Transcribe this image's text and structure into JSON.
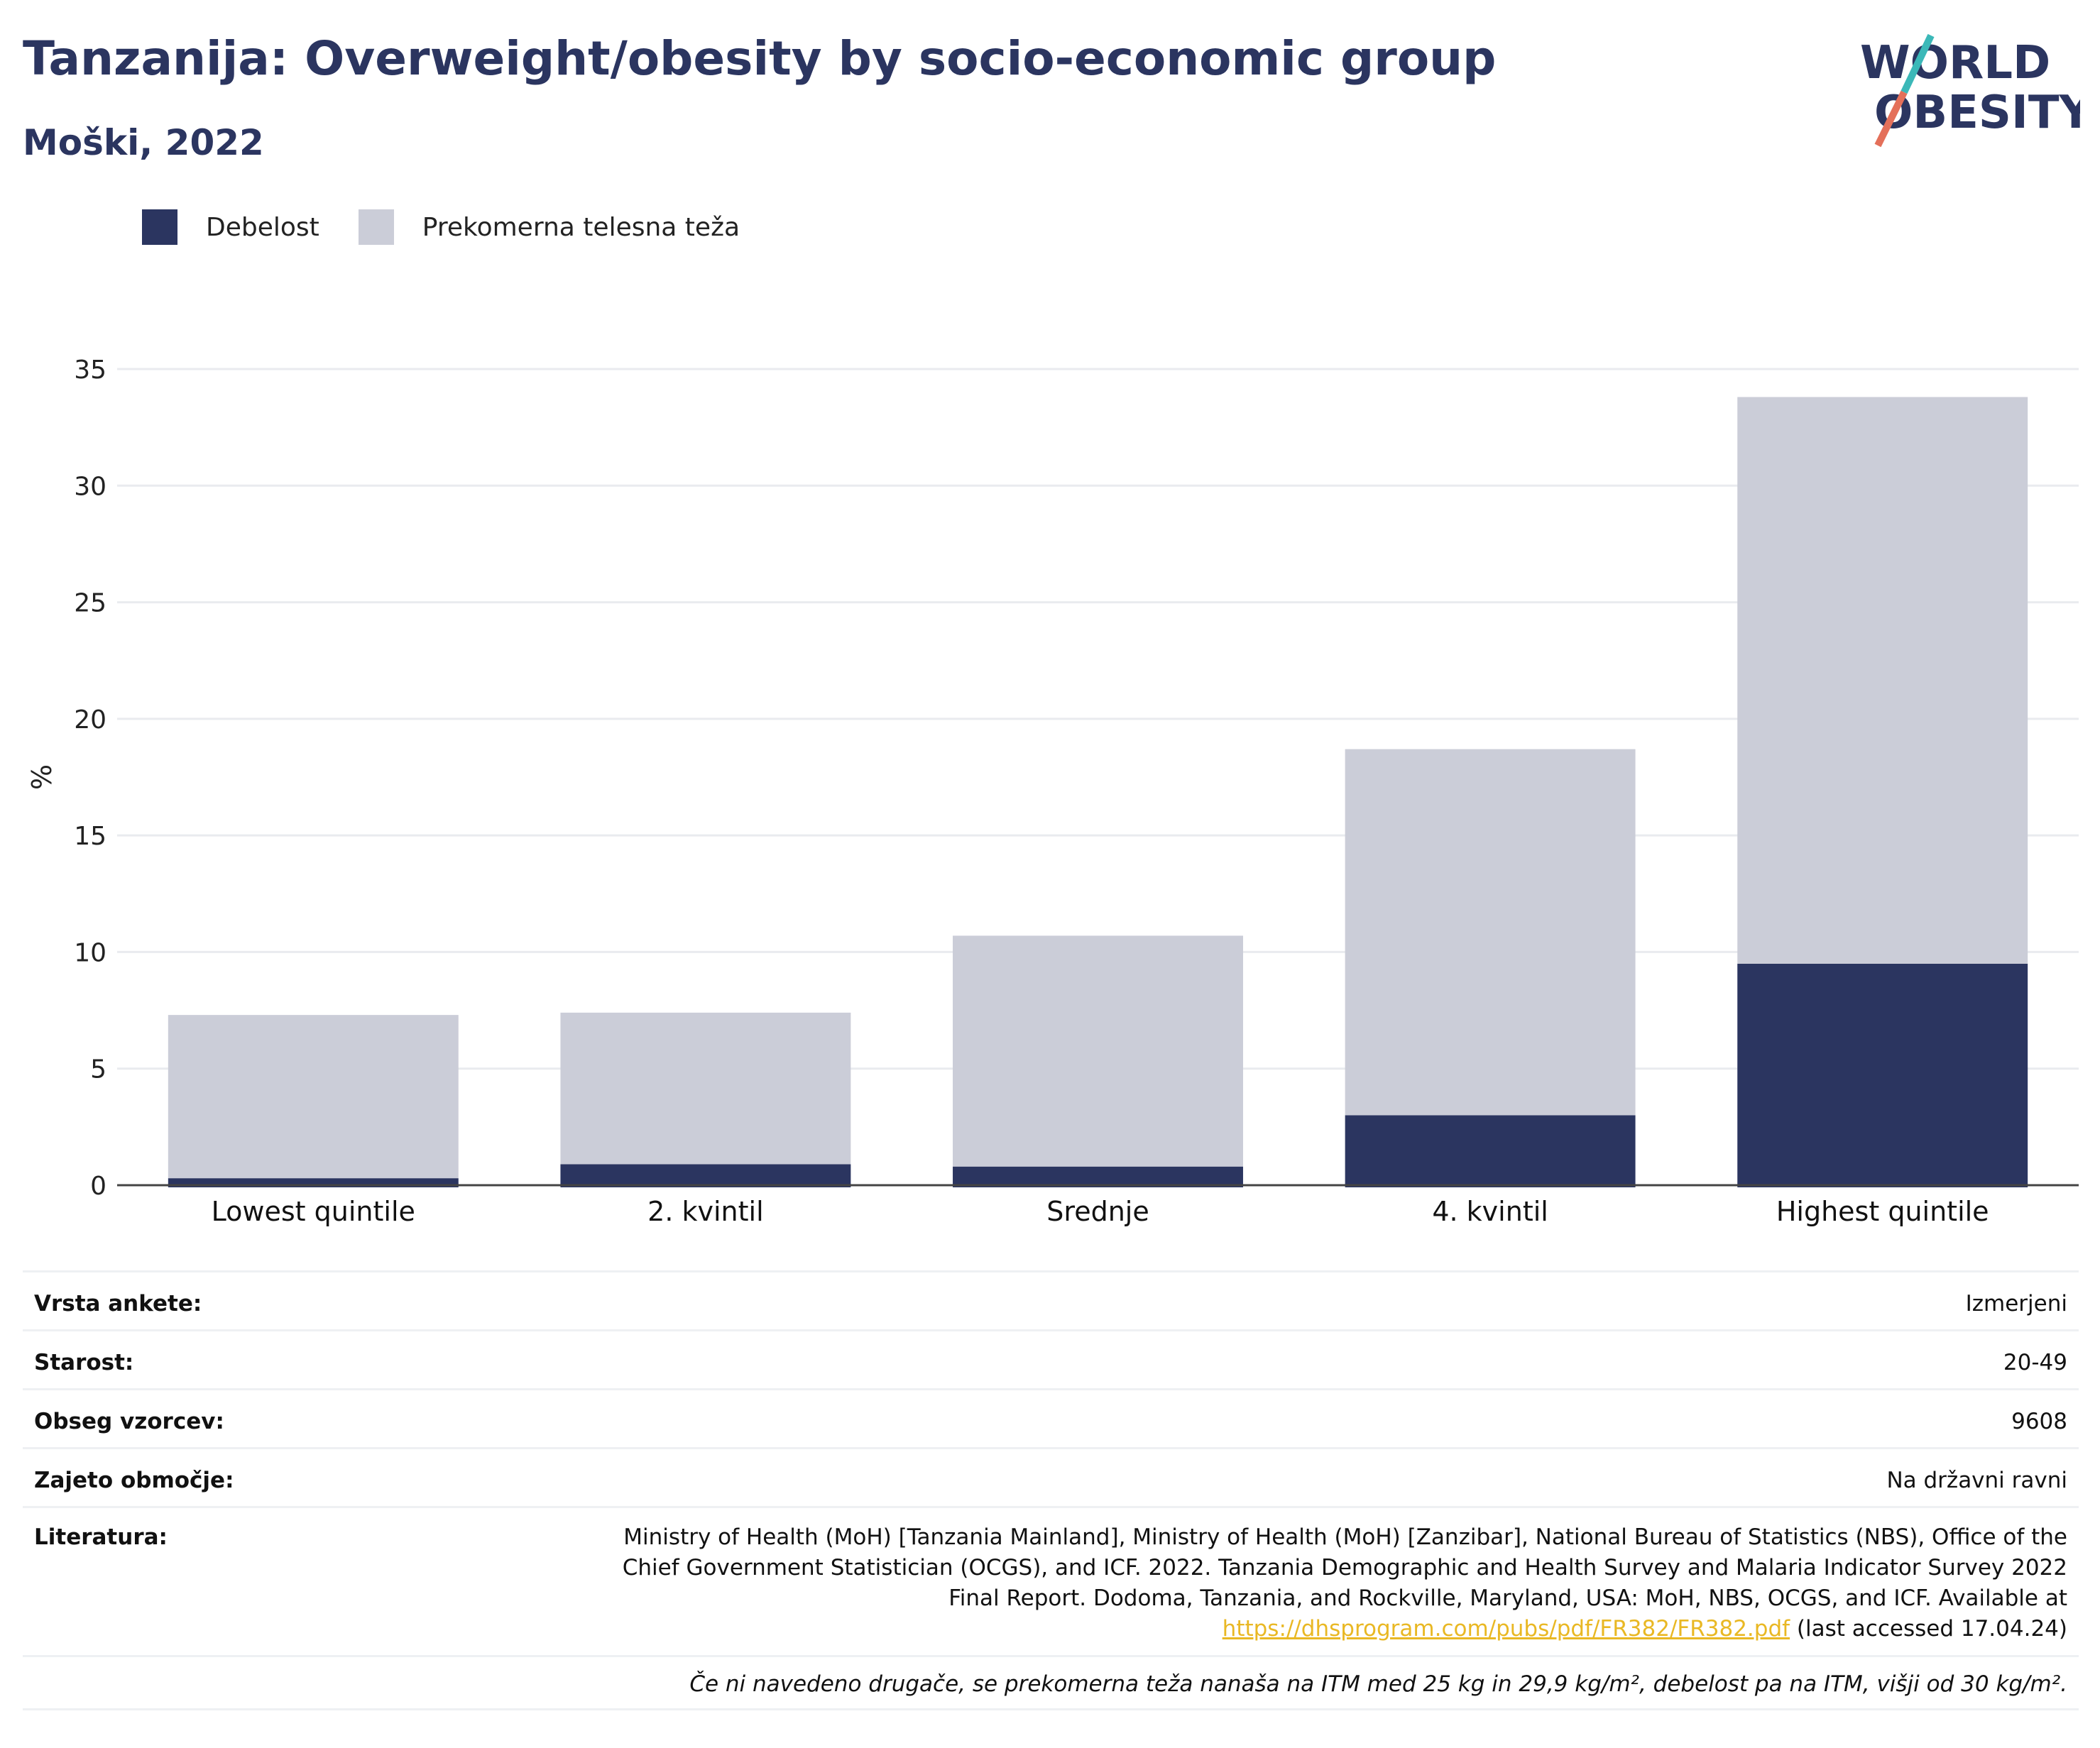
{
  "header": {
    "title": "Tanzanija: Overweight/obesity by socio-economic group",
    "subtitle": "Moški, 2022"
  },
  "logo": {
    "line1": "WORLD",
    "line2": "OBESITY",
    "colors": {
      "text": "#2b3560",
      "slash_top": "#3bb8b8",
      "slash_bottom": "#e4705a"
    }
  },
  "legend": {
    "items": [
      {
        "label": "Debelost",
        "color": "#2b3560"
      },
      {
        "label": "Prekomerna telesna teža",
        "color": "#cbcdd8"
      }
    ]
  },
  "chart_data": {
    "type": "bar",
    "stacked": true,
    "ylabel": "%",
    "ylim": [
      0,
      35
    ],
    "yticks": [
      0,
      5,
      10,
      15,
      20,
      25,
      30,
      35
    ],
    "grid": true,
    "legend_position": "top-left",
    "categories": [
      "Lowest quintile",
      "2. kvintil",
      "Srednje",
      "4. kvintil",
      "Highest quintile"
    ],
    "series": [
      {
        "name": "Debelost",
        "color": "#2b3560",
        "values": [
          0.3,
          0.9,
          0.8,
          3.0,
          9.5
        ]
      },
      {
        "name": "Prekomerna telesna teža",
        "color": "#cbcdd8",
        "values": [
          7.0,
          6.5,
          9.9,
          15.7,
          24.3
        ]
      }
    ]
  },
  "info": {
    "rows": [
      {
        "label": "Vrsta ankete:",
        "value": "Izmerjeni"
      },
      {
        "label": "Starost:",
        "value": "20-49"
      },
      {
        "label": "Obseg vzorcev:",
        "value": "9608"
      },
      {
        "label": "Zajeto območje:",
        "value": "Na državni ravni"
      }
    ],
    "literature": {
      "label": "Literatura:",
      "text": "Ministry of Health (MoH) [Tanzania Mainland], Ministry of Health (MoH) [Zanzibar], National Bureau of Statistics (NBS), Office of the Chief Government Statistician (OCGS), and ICF. 2022. Tanzania Demographic and Health Survey and Malaria Indicator Survey 2022 Final Report. Dodoma, Tanzania, and Rockville, Maryland, USA: MoH, NBS, OCGS, and ICF. Available at",
      "link": "https://dhsprogram.com/pubs/pdf/FR382/FR382.pdf",
      "after_link": "(last accessed 17.04.24)"
    },
    "note": "Če ni navedeno drugače, se prekomerna teža nanaša na ITM med 25 kg in 29,9 kg/m², debelost pa na ITM, višji od 30 kg/m²."
  }
}
